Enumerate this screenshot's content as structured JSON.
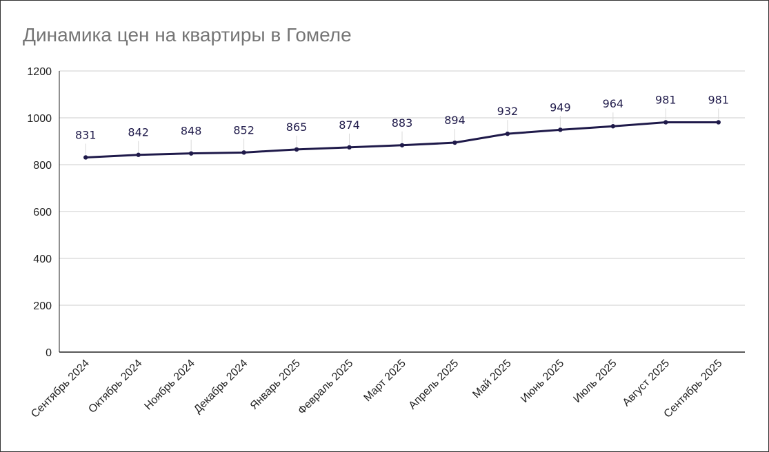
{
  "chart_data": {
    "type": "line",
    "title": "Динамика цен на квартиры в Гомеле",
    "categories": [
      "Сентябрь 2024",
      "Октябрь 2024",
      "Ноябрь 2024",
      "Декабрь 2024",
      "Январь 2025",
      "Февраль 2025",
      "Март 2025",
      "Апрель 2025",
      "Май 2025",
      "Июнь 2025",
      "Июль 2025",
      "Август 2025",
      "Сентябрь 2025"
    ],
    "series": [
      {
        "values": [
          831,
          842,
          848,
          852,
          865,
          874,
          883,
          894,
          932,
          949,
          964,
          981,
          981
        ],
        "color": "#1f1a4a"
      }
    ],
    "ylim": [
      0,
      1200
    ],
    "yticks": [
      0,
      200,
      400,
      600,
      800,
      1000,
      1200
    ],
    "xlabel": "",
    "ylabel": "",
    "grid": true,
    "data_labels": true,
    "gridline_color": "#cccccc"
  }
}
